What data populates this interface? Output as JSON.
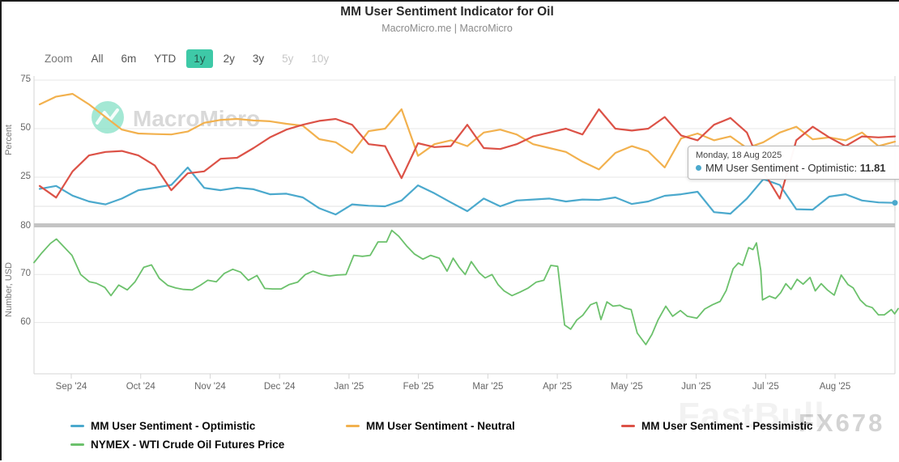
{
  "header": {
    "title": "MM User Sentiment Indicator for Oil",
    "subtitle": "MacroMicro.me | MacroMicro"
  },
  "toolbar": {
    "zoom_label": "Zoom",
    "ranges": [
      {
        "label": "All",
        "state": "normal"
      },
      {
        "label": "6m",
        "state": "normal"
      },
      {
        "label": "YTD",
        "state": "normal"
      },
      {
        "label": "1y",
        "state": "active"
      },
      {
        "label": "2y",
        "state": "normal"
      },
      {
        "label": "3y",
        "state": "normal"
      },
      {
        "label": "5y",
        "state": "disabled"
      },
      {
        "label": "10y",
        "state": "disabled"
      }
    ]
  },
  "axes": {
    "top": {
      "title": "Percent",
      "ticks": [
        "75",
        "50",
        "25"
      ]
    },
    "bottom": {
      "title": "Number, USD",
      "ticks": [
        "80",
        "70",
        "60"
      ]
    },
    "x": {
      "months": [
        "Sep '24",
        "Oct '24",
        "Nov '24",
        "Dec '24",
        "Jan '25",
        "Feb '25",
        "Mar '25",
        "Apr '25",
        "May '25",
        "Jun '25",
        "Jul '25",
        "Aug '25"
      ]
    }
  },
  "tooltip": {
    "date": "Monday, 18 Aug 2025",
    "series": "MM User Sentiment - Optimistic",
    "separator": ": ",
    "value": "11.81",
    "marker_color": "#4BA9CD"
  },
  "legend": [
    {
      "label": "MM User Sentiment - Optimistic",
      "color": "#4BA9CD"
    },
    {
      "label": "MM User Sentiment - Neutral",
      "color": "#F2B14E"
    },
    {
      "label": "MM User Sentiment - Pessimistic",
      "color": "#DC5247"
    },
    {
      "label": "NYMEX - WTI Crude Oil Futures Price",
      "color": "#6CC16C"
    }
  ],
  "watermarks": {
    "brand": "MacroMicro",
    "fastbull": "FastBull",
    "fx678": "FX678"
  },
  "colors": {
    "optimistic": "#4BA9CD",
    "neutral": "#F2B14E",
    "pessimistic": "#DC5247",
    "price": "#6CC16C",
    "active_range_bg": "#3EC9A7",
    "separator_band": "#C4C4C4",
    "watermark_circle": "#85E0C6"
  },
  "chart_data": {
    "type": "line",
    "title": "MM User Sentiment Indicator for Oil",
    "x_range": "weekly, 19 Aug 2024 to 18 Aug 2025",
    "x_months": [
      "Sep '24",
      "Oct '24",
      "Nov '24",
      "Dec '24",
      "Jan '25",
      "Feb '25",
      "Mar '25",
      "Apr '25",
      "May '25",
      "Jun '25",
      "Jul '25",
      "Aug '25"
    ],
    "panels": [
      {
        "name": "sentiment",
        "ylabel": "Percent",
        "ylim": [
          5,
          80
        ],
        "gridlines": [
          75,
          50,
          25,
          10
        ],
        "series": [
          {
            "name": "MM User Sentiment - Optimistic",
            "color": "#4BA9CD",
            "values": [
              19,
              20.5,
              15.5,
              12.5,
              11,
              14,
              18.3,
              19.6,
              21,
              30,
              19.5,
              18.3,
              19.6,
              18.8,
              16.2,
              16.5,
              14.6,
              9,
              5.8,
              11,
              10.3,
              10,
              13,
              20.8,
              16.7,
              12,
              7.5,
              14,
              10,
              13,
              13.5,
              14,
              12.5,
              13.5,
              13.3,
              14.6,
              11.2,
              12.5,
              15.4,
              16.2,
              17.5,
              7,
              6.2,
              14,
              24,
              21,
              8.5,
              8.3,
              15,
              16.2,
              13,
              12,
              11.81
            ]
          },
          {
            "name": "MM User Sentiment - Neutral",
            "color": "#F2B14E",
            "values": [
              62.5,
              66.5,
              67.9,
              62.5,
              56,
              49.5,
              47.5,
              47.2,
              47,
              48.5,
              53,
              54.5,
              55,
              54.2,
              53.8,
              52.5,
              51.5,
              44.6,
              43,
              37.5,
              48.7,
              50,
              60,
              36,
              42,
              44,
              41,
              48,
              49.5,
              47,
              42,
              40,
              38,
              33,
              29,
              37.5,
              41,
              38.3,
              30,
              45,
              47.5,
              44,
              46,
              40,
              43,
              48,
              51,
              44.5,
              45.5,
              44,
              48,
              41,
              43.3
            ]
          },
          {
            "name": "MM User Sentiment - Pessimistic",
            "color": "#DC5247",
            "values": [
              20.5,
              14.5,
              28,
              36.2,
              38,
              38.5,
              36.2,
              31,
              18.3,
              27,
              28,
              34.5,
              35,
              40,
              45.5,
              49.5,
              52,
              54,
              55,
              52,
              42,
              41,
              24.5,
              42.5,
              40.5,
              41,
              52,
              40,
              39.5,
              42,
              46,
              48,
              50,
              47,
              60,
              50,
              49,
              50,
              56,
              46.5,
              44,
              52,
              55.5,
              48,
              28,
              14,
              44,
              51,
              45.5,
              41,
              46,
              45.5,
              46
            ]
          }
        ]
      },
      {
        "name": "price",
        "ylabel": "Number, USD",
        "ylim": [
          49,
          81
        ],
        "gridlines": [
          70,
          60
        ],
        "series": [
          {
            "name": "NYMEX - WTI Crude Oil Futures Price",
            "color": "#6CC16C",
            "points_pct_of_year_vs_usd": [
              [
                0,
                72.5
              ],
              [
                0.9,
                74.5
              ],
              [
                1.9,
                76.5
              ],
              [
                2.6,
                77.4
              ],
              [
                3.5,
                75.7
              ],
              [
                4.4,
                74
              ],
              [
                5.4,
                70
              ],
              [
                6.4,
                68.5
              ],
              [
                7.2,
                68.2
              ],
              [
                8.2,
                67.3
              ],
              [
                8.9,
                65.6
              ],
              [
                9.8,
                67.8
              ],
              [
                10.8,
                66.8
              ],
              [
                11.7,
                68.5
              ],
              [
                12.7,
                71.5
              ],
              [
                13.6,
                72
              ],
              [
                14.5,
                69.2
              ],
              [
                15.5,
                67.7
              ],
              [
                16.4,
                67.2
              ],
              [
                17.3,
                66.9
              ],
              [
                18.3,
                66.8
              ],
              [
                19.2,
                67.7
              ],
              [
                20.1,
                68.8
              ],
              [
                21.1,
                68.5
              ],
              [
                22,
                70.2
              ],
              [
                23,
                71.1
              ],
              [
                23.9,
                70.5
              ],
              [
                24.8,
                68.8
              ],
              [
                25.8,
                69.8
              ],
              [
                26.7,
                67.1
              ],
              [
                27.6,
                67
              ],
              [
                28.6,
                67
              ],
              [
                29.5,
                67.9
              ],
              [
                30.5,
                68.4
              ],
              [
                31.4,
                70
              ],
              [
                32.3,
                70.7
              ],
              [
                33.3,
                70
              ],
              [
                34.2,
                69.7
              ],
              [
                35.1,
                69.9
              ],
              [
                36.1,
                70
              ],
              [
                37,
                74
              ],
              [
                38,
                73.8
              ],
              [
                38.9,
                74
              ],
              [
                39.8,
                76.8
              ],
              [
                40.8,
                76.8
              ],
              [
                41.4,
                79.2
              ],
              [
                42.2,
                78
              ],
              [
                43.1,
                76
              ],
              [
                44,
                74.3
              ],
              [
                45,
                73.2
              ],
              [
                45.9,
                74
              ],
              [
                46.9,
                73.4
              ],
              [
                47.8,
                70.7
              ],
              [
                48.5,
                73.4
              ],
              [
                49.2,
                71.5
              ],
              [
                49.9,
                70
              ],
              [
                50.6,
                72.7
              ],
              [
                51.5,
                70.4
              ],
              [
                52.2,
                69.3
              ],
              [
                53,
                70
              ],
              [
                53.7,
                67.9
              ],
              [
                54.4,
                66.6
              ],
              [
                55.3,
                65.6
              ],
              [
                56.2,
                66.3
              ],
              [
                57.2,
                67.2
              ],
              [
                58.1,
                68.4
              ],
              [
                59,
                68.8
              ],
              [
                59.8,
                71.9
              ],
              [
                60.6,
                71.7
              ],
              [
                61.4,
                59.5
              ],
              [
                62.1,
                58.6
              ],
              [
                62.8,
                60.5
              ],
              [
                63.5,
                61.5
              ],
              [
                64.4,
                63.7
              ],
              [
                65.1,
                64.2
              ],
              [
                65.6,
                60.6
              ],
              [
                66.3,
                64.3
              ],
              [
                67,
                63.4
              ],
              [
                67.8,
                63.6
              ],
              [
                68.4,
                63
              ],
              [
                69.1,
                62.7
              ],
              [
                69.8,
                57.8
              ],
              [
                70.8,
                55.4
              ],
              [
                71.5,
                57.5
              ],
              [
                72.2,
                60.5
              ],
              [
                73.1,
                63.4
              ],
              [
                73.9,
                61.3
              ],
              [
                74.8,
                62.5
              ],
              [
                75.6,
                61.3
              ],
              [
                76.7,
                60.9
              ],
              [
                77.6,
                62.8
              ],
              [
                78.5,
                63.7
              ],
              [
                79.4,
                64.4
              ],
              [
                80.1,
                66.7
              ],
              [
                80.9,
                71.2
              ],
              [
                81.5,
                72.4
              ],
              [
                82,
                71.9
              ],
              [
                82.7,
                75.6
              ],
              [
                83.2,
                75.2
              ],
              [
                83.6,
                76.6
              ],
              [
                84.1,
                70.9
              ],
              [
                84.3,
                64.7
              ],
              [
                85.1,
                65.5
              ],
              [
                85.8,
                65
              ],
              [
                86.4,
                66.2
              ],
              [
                87,
                68.1
              ],
              [
                87.6,
                66.9
              ],
              [
                88.3,
                69
              ],
              [
                89,
                68
              ],
              [
                89.8,
                69.4
              ],
              [
                90.4,
                66.6
              ],
              [
                91.1,
                68.1
              ],
              [
                91.8,
                66.8
              ],
              [
                92.6,
                65.7
              ],
              [
                93.4,
                69.9
              ],
              [
                94.2,
                67.9
              ],
              [
                94.8,
                67.2
              ],
              [
                95.6,
                64.7
              ],
              [
                96.3,
                63.5
              ],
              [
                97,
                63.1
              ],
              [
                97.7,
                61.6
              ],
              [
                98.4,
                61.6
              ],
              [
                99.2,
                62.7
              ],
              [
                99.6,
                61.8
              ],
              [
                100,
                62.9
              ]
            ]
          }
        ]
      }
    ],
    "last_point": {
      "date": "Monday, 18 Aug 2025",
      "series": "MM User Sentiment - Optimistic",
      "value": 11.81
    }
  }
}
